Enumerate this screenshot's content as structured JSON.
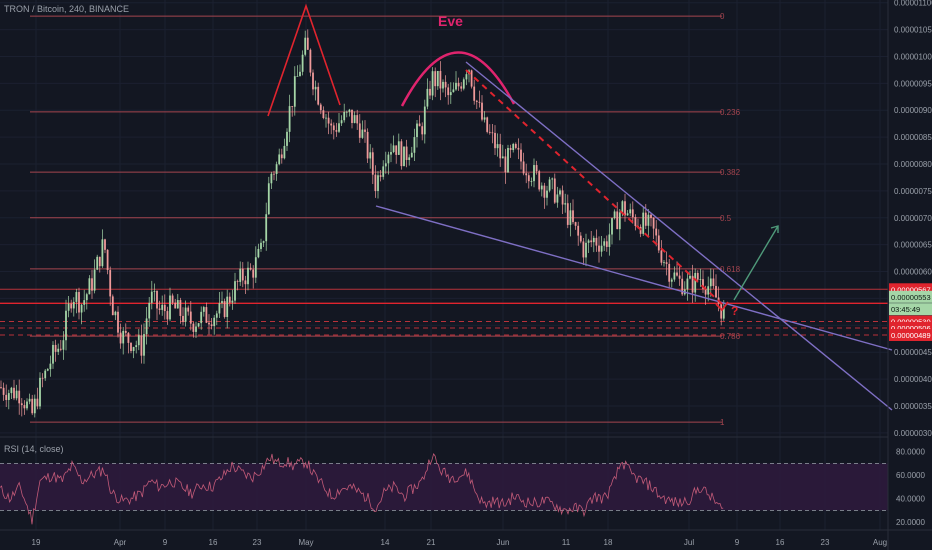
{
  "header": {
    "symbol_title": "TRON / Bitcoin, 240, BINANCE"
  },
  "annotations": {
    "eve_label": "Eve",
    "question_mark": "?"
  },
  "colors": {
    "background": "#131722",
    "up_candle": "#a5d6a7",
    "down_candle": "#ef9a9a",
    "fib_line": "#a4454f",
    "trend_line": "#7e6fc4",
    "pattern_red": "#e0242e",
    "eve_arc": "#e0246e",
    "arrow_green": "#4f9a7a",
    "rsi_line": "#c25a78",
    "rsi_band": "#2e1a3c"
  },
  "chart_data": {
    "type": "candlestick",
    "title": "TRON / Bitcoin, 240, BINANCE",
    "y_axis_ticks": [
      "0.00001100",
      "0.00001050",
      "0.00001000",
      "0.00000950",
      "0.00000900",
      "0.00000850",
      "0.00000800",
      "0.00000750",
      "0.00000700",
      "0.00000650",
      "0.00000600",
      "0.00000550",
      "0.00000500",
      "0.00000450",
      "0.00000400",
      "0.00000350",
      "0.00000300"
    ],
    "y_range": [
      2.96e-06,
      1.105e-05
    ],
    "x_axis_ticks": [
      "19",
      "Apr",
      "9",
      "16",
      "23",
      "May",
      "14",
      "21",
      "Jun",
      "11",
      "18",
      "Jul",
      "9",
      "16",
      "23",
      "Aug"
    ],
    "fibonacci_levels": [
      {
        "label": "0",
        "price": 1.075e-05
      },
      {
        "label": "0.236",
        "price": 8.97e-06
      },
      {
        "label": "0.382",
        "price": 7.85e-06
      },
      {
        "label": "0.5",
        "price": 7e-06
      },
      {
        "label": "0.618",
        "price": 6.05e-06
      },
      {
        "label": "0.786",
        "price": 4.8e-06
      },
      {
        "label": "1",
        "price": 3.2e-06
      }
    ],
    "price_badges": [
      {
        "label": "0.00000567",
        "price": 5.67e-06,
        "color": "#e0242e"
      },
      {
        "label": "0.00000553",
        "price": 5.53e-06,
        "color": "#a5d6a7"
      },
      {
        "label": "03:45:49",
        "price": 5.3e-06,
        "color": "#a5d6a7"
      },
      {
        "label": "0.00000530",
        "price": 5.07e-06,
        "color": "#e0242e"
      },
      {
        "label": "0.00000506",
        "price": 4.95e-06,
        "color": "#e0242e"
      },
      {
        "label": "0.00000489",
        "price": 4.82e-06,
        "color": "#e0242e"
      }
    ],
    "horizontal_levels": [
      5.67e-06,
      5.41e-06,
      5.07e-06,
      4.95e-06,
      4.82e-06
    ],
    "price_path": [
      [
        0,
        3.85e-06
      ],
      [
        10,
        3.77e-06
      ],
      [
        20,
        3.75e-06
      ],
      [
        32,
        3.33e-06
      ],
      [
        40,
        3.85e-06
      ],
      [
        52,
        4.4e-06
      ],
      [
        62,
        4.7e-06
      ],
      [
        72,
        5.6e-06
      ],
      [
        82,
        5.4e-06
      ],
      [
        92,
        5.8e-06
      ],
      [
        104,
        6.55e-06
      ],
      [
        112,
        5.4e-06
      ],
      [
        122,
        4.8e-06
      ],
      [
        132,
        4.7e-06
      ],
      [
        142,
        4.6e-06
      ],
      [
        150,
        5.55e-06
      ],
      [
        160,
        5.25e-06
      ],
      [
        172,
        5.35e-06
      ],
      [
        182,
        5.2e-06
      ],
      [
        192,
        5.05e-06
      ],
      [
        202,
        5.15e-06
      ],
      [
        212,
        5.2e-06
      ],
      [
        222,
        5.25e-06
      ],
      [
        232,
        5.6e-06
      ],
      [
        242,
        5.9e-06
      ],
      [
        252,
        6e-06
      ],
      [
        262,
        6.4e-06
      ],
      [
        270,
        7.8e-06
      ],
      [
        278,
        8e-06
      ],
      [
        286,
        8.7e-06
      ],
      [
        292,
        9.2e-06
      ],
      [
        300,
        9.8e-06
      ],
      [
        306,
        1.02e-05
      ],
      [
        314,
        9.5e-06
      ],
      [
        322,
        9.1e-06
      ],
      [
        332,
        8.6e-06
      ],
      [
        340,
        8.8e-06
      ],
      [
        350,
        8.9e-06
      ],
      [
        360,
        8.7e-06
      ],
      [
        368,
        8.2e-06
      ],
      [
        376,
        7.6e-06
      ],
      [
        384,
        8.2e-06
      ],
      [
        394,
        8.4e-06
      ],
      [
        404,
        8.1e-06
      ],
      [
        412,
        8.4e-06
      ],
      [
        422,
        8.7e-06
      ],
      [
        432,
        9.6e-06
      ],
      [
        440,
        9.5e-06
      ],
      [
        450,
        9.2e-06
      ],
      [
        460,
        9.5e-06
      ],
      [
        468,
        9.9e-06
      ],
      [
        476,
        9.2e-06
      ],
      [
        484,
        8.7e-06
      ],
      [
        494,
        8.4e-06
      ],
      [
        504,
        8e-06
      ],
      [
        514,
        8.2e-06
      ],
      [
        524,
        8e-06
      ],
      [
        534,
        7.8e-06
      ],
      [
        544,
        7.6e-06
      ],
      [
        554,
        7.5e-06
      ],
      [
        564,
        7.2e-06
      ],
      [
        574,
        6.8e-06
      ],
      [
        584,
        6.4e-06
      ],
      [
        594,
        6.6e-06
      ],
      [
        604,
        6.5e-06
      ],
      [
        612,
        6.8e-06
      ],
      [
        622,
        7.2e-06
      ],
      [
        632,
        7e-06
      ],
      [
        642,
        6.9e-06
      ],
      [
        652,
        6.8e-06
      ],
      [
        660,
        6.4e-06
      ],
      [
        670,
        6e-06
      ],
      [
        680,
        5.8e-06
      ],
      [
        690,
        5.75e-06
      ],
      [
        700,
        5.9e-06
      ],
      [
        710,
        5.7e-06
      ],
      [
        718,
        5.45e-06
      ],
      [
        724,
        5.2e-06
      ]
    ],
    "rsi": {
      "title": "RSI (14, close)",
      "ticks": [
        "80.0000",
        "60.0000",
        "40.0000",
        "20.0000"
      ],
      "range": [
        15,
        90
      ],
      "upper_band": 70,
      "lower_band": 30,
      "path": [
        [
          0,
          48
        ],
        [
          10,
          40
        ],
        [
          20,
          50
        ],
        [
          32,
          22
        ],
        [
          40,
          55
        ],
        [
          52,
          60
        ],
        [
          62,
          55
        ],
        [
          72,
          68
        ],
        [
          82,
          55
        ],
        [
          92,
          60
        ],
        [
          104,
          65
        ],
        [
          112,
          45
        ],
        [
          122,
          38
        ],
        [
          132,
          40
        ],
        [
          142,
          45
        ],
        [
          150,
          55
        ],
        [
          160,
          50
        ],
        [
          172,
          55
        ],
        [
          182,
          50
        ],
        [
          192,
          45
        ],
        [
          202,
          52
        ],
        [
          212,
          50
        ],
        [
          222,
          58
        ],
        [
          232,
          68
        ],
        [
          242,
          62
        ],
        [
          252,
          58
        ],
        [
          262,
          66
        ],
        [
          270,
          75
        ],
        [
          278,
          70
        ],
        [
          286,
          72
        ],
        [
          292,
          68
        ],
        [
          300,
          70
        ],
        [
          306,
          72
        ],
        [
          314,
          60
        ],
        [
          322,
          52
        ],
        [
          332,
          42
        ],
        [
          340,
          48
        ],
        [
          350,
          50
        ],
        [
          360,
          45
        ],
        [
          368,
          40
        ],
        [
          376,
          32
        ],
        [
          384,
          45
        ],
        [
          394,
          50
        ],
        [
          404,
          42
        ],
        [
          412,
          48
        ],
        [
          422,
          55
        ],
        [
          432,
          78
        ],
        [
          440,
          65
        ],
        [
          450,
          58
        ],
        [
          460,
          60
        ],
        [
          468,
          62
        ],
        [
          476,
          45
        ],
        [
          484,
          35
        ],
        [
          494,
          38
        ],
        [
          504,
          35
        ],
        [
          514,
          42
        ],
        [
          524,
          38
        ],
        [
          534,
          36
        ],
        [
          544,
          38
        ],
        [
          554,
          35
        ],
        [
          564,
          30
        ],
        [
          574,
          32
        ],
        [
          584,
          30
        ],
        [
          594,
          42
        ],
        [
          604,
          40
        ],
        [
          612,
          50
        ],
        [
          622,
          72
        ],
        [
          632,
          60
        ],
        [
          642,
          55
        ],
        [
          652,
          50
        ],
        [
          660,
          42
        ],
        [
          670,
          38
        ],
        [
          680,
          36
        ],
        [
          690,
          40
        ],
        [
          700,
          50
        ],
        [
          710,
          42
        ],
        [
          718,
          35
        ],
        [
          724,
          28
        ]
      ]
    }
  }
}
